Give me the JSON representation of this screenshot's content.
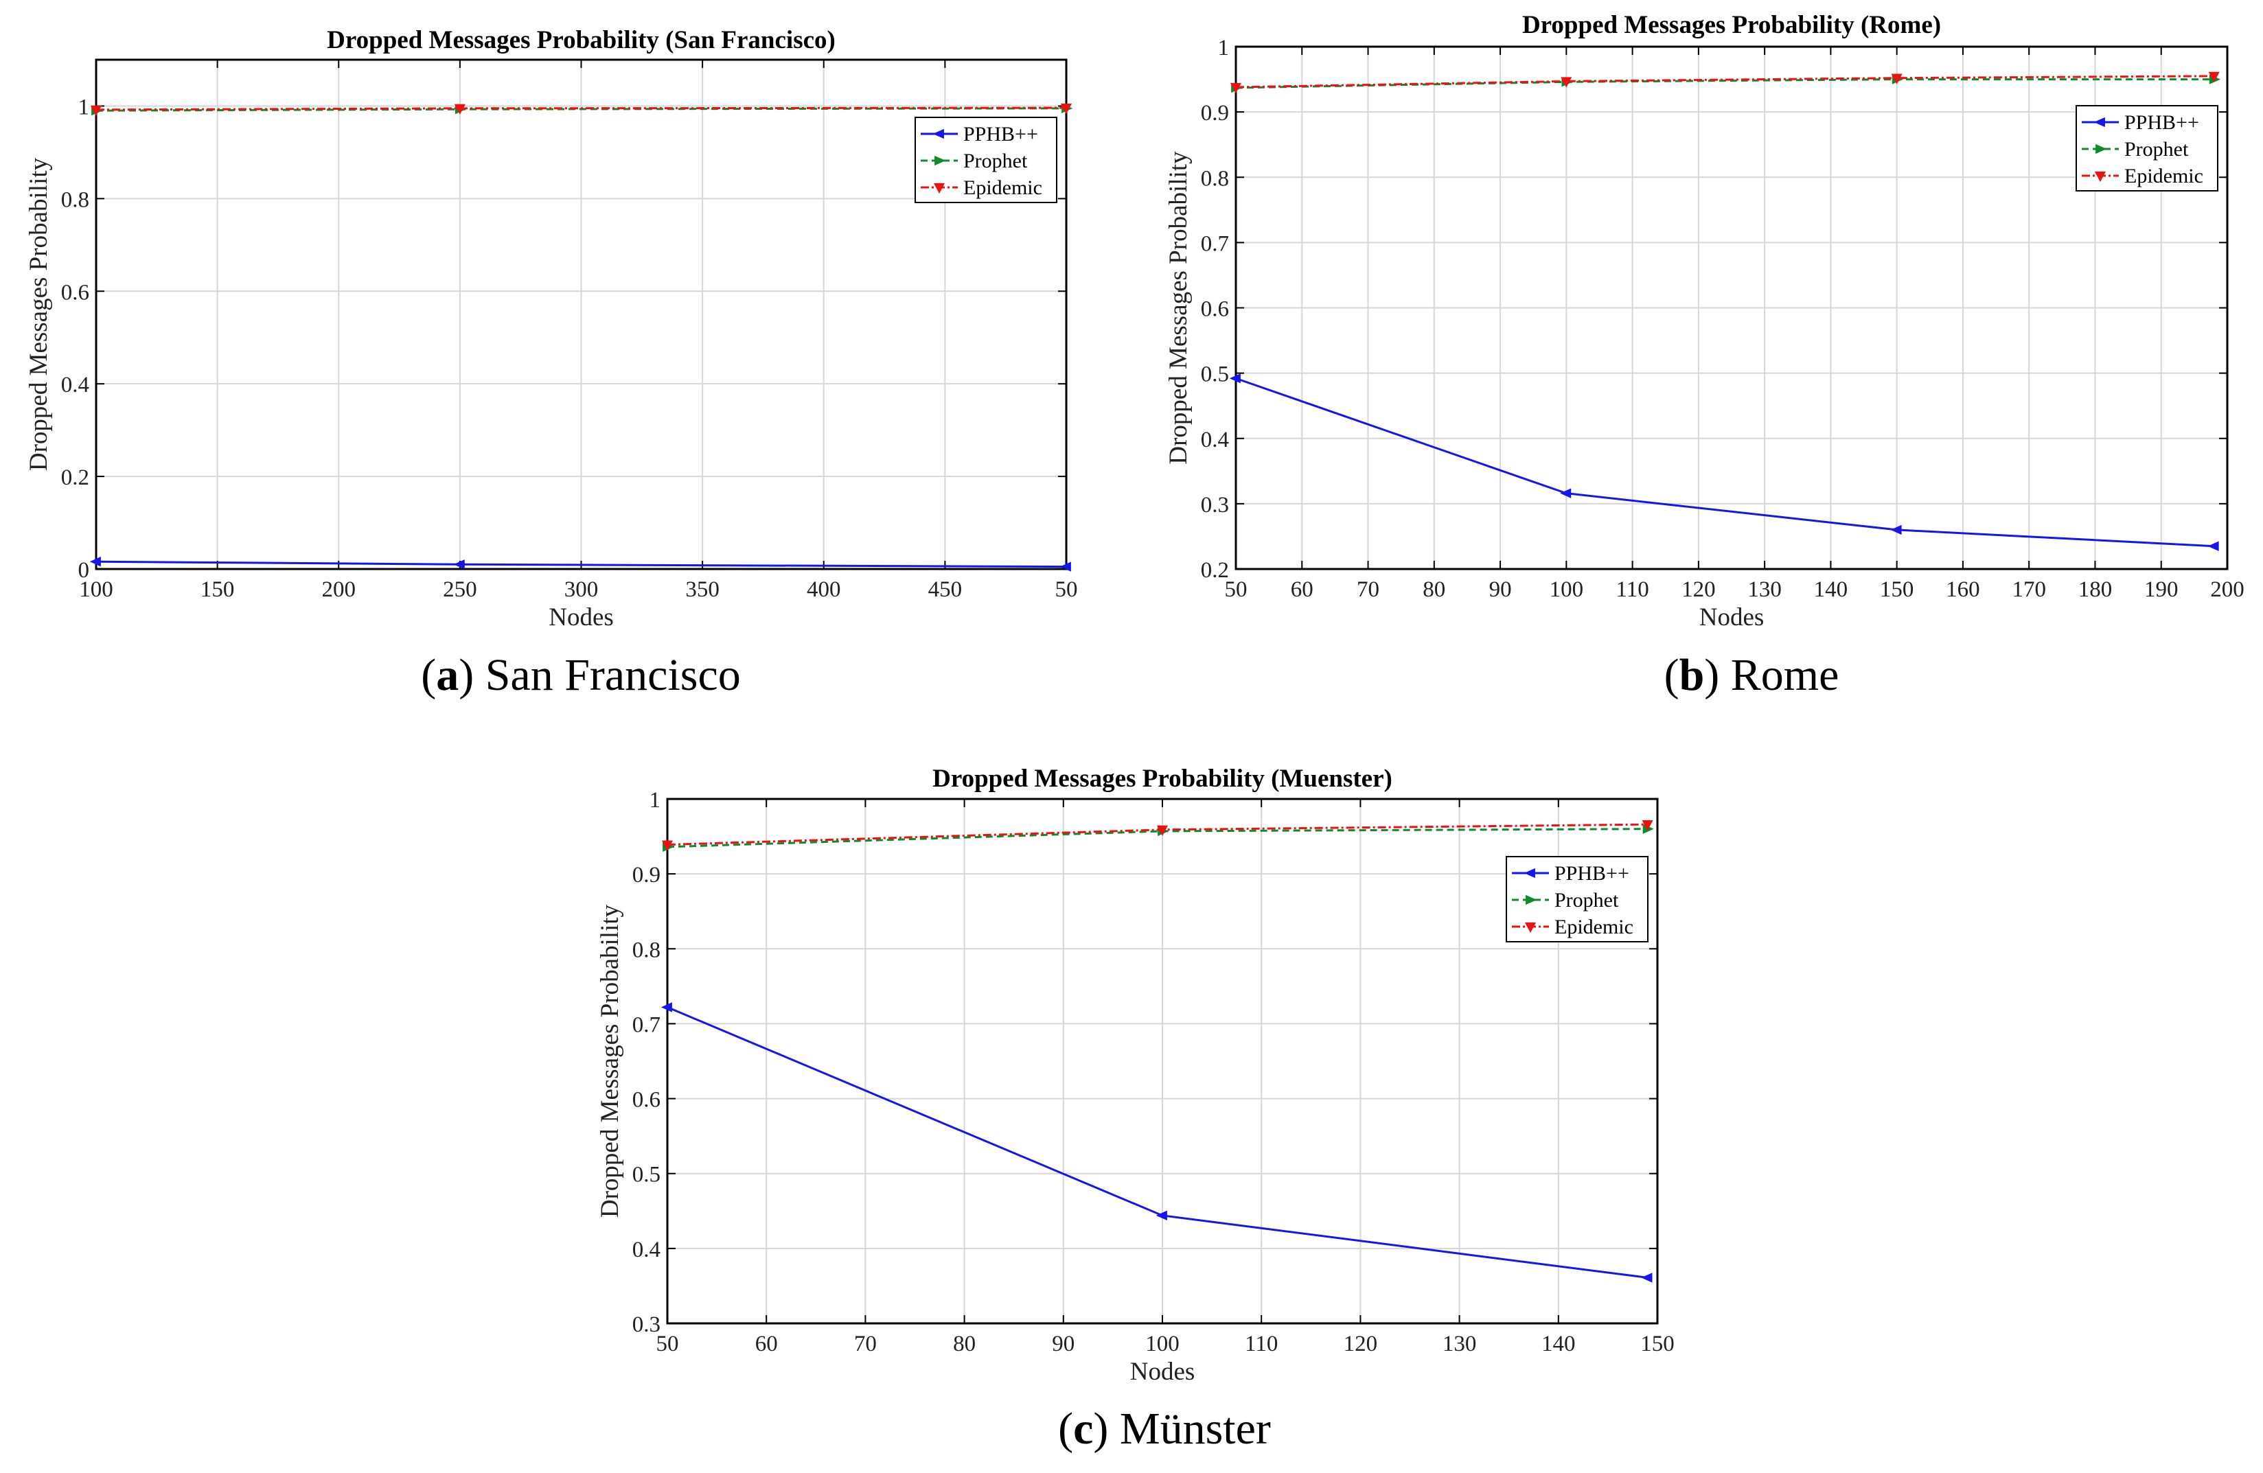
{
  "colors": {
    "PPHB++": "#1515ee",
    "Prophet": "#0f8a2c",
    "Epidemic": "#ee1111",
    "grid": "#d6d6d6"
  },
  "markers": {
    "PPHB++": "triangle-left",
    "Prophet": "triangle-right",
    "Epidemic": "triangle-down"
  },
  "chart_data": [
    {
      "type": "line",
      "title": "Dropped Messages Probability (San Francisco)",
      "xlabel": "Nodes",
      "ylabel": "Dropped Messages Probability",
      "caption_letter": "a",
      "caption_text": "San Francisco",
      "x_tick_labels": [
        "100",
        "150",
        "200",
        "250",
        "300",
        "350",
        "400",
        "450",
        "50"
      ],
      "y_tick_labels": [
        "0",
        "0.2",
        "0.4",
        "0.6",
        "0.8",
        "1"
      ],
      "xlim": [
        100,
        500
      ],
      "ylim": [
        0,
        1.1
      ],
      "grid": true,
      "legend_position": "upper-right",
      "x": [
        100,
        250,
        500
      ],
      "series": [
        {
          "name": "PPHB++",
          "values": [
            0.016,
            0.01,
            0.005
          ]
        },
        {
          "name": "Prophet",
          "values": [
            0.99,
            0.993,
            0.995
          ]
        },
        {
          "name": "Epidemic",
          "values": [
            0.992,
            0.995,
            0.996
          ]
        }
      ]
    },
    {
      "type": "line",
      "title": "Dropped Messages Probability (Rome)",
      "xlabel": "Nodes",
      "ylabel": "Dropped Messages Probability",
      "caption_letter": "b",
      "caption_text": "Rome",
      "x_tick_labels": [
        "50",
        "60",
        "70",
        "80",
        "90",
        "100",
        "110",
        "120",
        "130",
        "140",
        "150",
        "160",
        "170",
        "180",
        "190",
        "200"
      ],
      "y_tick_labels": [
        "0.2",
        "0.3",
        "0.4",
        "0.5",
        "0.6",
        "0.7",
        "0.8",
        "0.9",
        "1"
      ],
      "xlim": [
        50,
        200
      ],
      "ylim": [
        0.2,
        1
      ],
      "grid": true,
      "legend_position": "upper-right",
      "x": [
        50,
        100,
        150,
        198
      ],
      "series": [
        {
          "name": "PPHB++",
          "values": [
            0.492,
            0.316,
            0.26,
            0.235
          ]
        },
        {
          "name": "Prophet",
          "values": [
            0.937,
            0.946,
            0.95,
            0.95
          ]
        },
        {
          "name": "Epidemic",
          "values": [
            0.938,
            0.947,
            0.952,
            0.955
          ]
        }
      ]
    },
    {
      "type": "line",
      "title": "Dropped Messages Probability (Muenster)",
      "xlabel": "Nodes",
      "ylabel": "Dropped Messages Probability",
      "caption_letter": "c",
      "caption_text": "Münster",
      "x_tick_labels": [
        "50",
        "60",
        "70",
        "80",
        "90",
        "100",
        "110",
        "120",
        "130",
        "140",
        "150"
      ],
      "y_tick_labels": [
        "0.3",
        "0.4",
        "0.5",
        "0.6",
        "0.7",
        "0.8",
        "0.9",
        "1"
      ],
      "xlim": [
        50,
        150
      ],
      "ylim": [
        0.3,
        1
      ],
      "grid": true,
      "legend_position": "upper-right",
      "x": [
        50,
        100,
        149
      ],
      "series": [
        {
          "name": "PPHB++",
          "values": [
            0.722,
            0.444,
            0.361
          ]
        },
        {
          "name": "Prophet",
          "values": [
            0.936,
            0.957,
            0.96
          ]
        },
        {
          "name": "Epidemic",
          "values": [
            0.939,
            0.959,
            0.966
          ]
        }
      ]
    }
  ]
}
